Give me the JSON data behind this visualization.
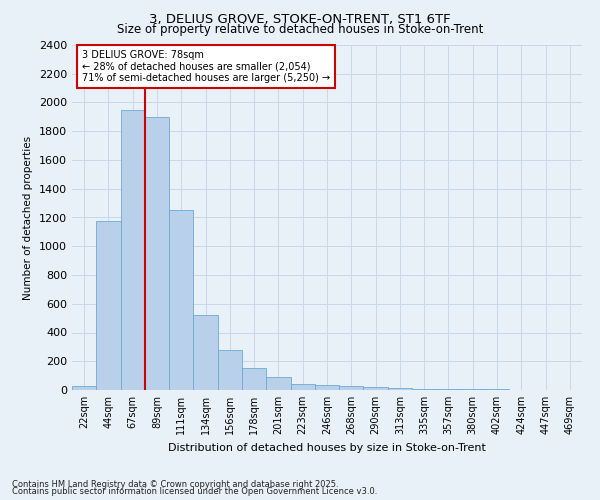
{
  "title1": "3, DELIUS GROVE, STOKE-ON-TRENT, ST1 6TF",
  "title2": "Size of property relative to detached houses in Stoke-on-Trent",
  "xlabel": "Distribution of detached houses by size in Stoke-on-Trent",
  "ylabel": "Number of detached properties",
  "bin_labels": [
    "22sqm",
    "44sqm",
    "67sqm",
    "89sqm",
    "111sqm",
    "134sqm",
    "156sqm",
    "178sqm",
    "201sqm",
    "223sqm",
    "246sqm",
    "268sqm",
    "290sqm",
    "313sqm",
    "335sqm",
    "357sqm",
    "380sqm",
    "402sqm",
    "424sqm",
    "447sqm",
    "469sqm"
  ],
  "bar_values": [
    25,
    1175,
    1950,
    1900,
    1250,
    520,
    275,
    155,
    90,
    45,
    35,
    30,
    20,
    15,
    10,
    5,
    5,
    5,
    3,
    3,
    2
  ],
  "bar_color": "#b8d0ea",
  "bar_edge_color": "#6aaad4",
  "grid_color": "#c8d8ea",
  "background_color": "#e8f0f8",
  "red_line_color": "#cc0000",
  "annotation_text": "3 DELIUS GROVE: 78sqm\n← 28% of detached houses are smaller (2,054)\n71% of semi-detached houses are larger (5,250) →",
  "annotation_box_color": "#ffffff",
  "annotation_box_edge": "#cc0000",
  "ylim": [
    0,
    2400
  ],
  "yticks": [
    0,
    200,
    400,
    600,
    800,
    1000,
    1200,
    1400,
    1600,
    1800,
    2000,
    2200,
    2400
  ],
  "footnote1": "Contains HM Land Registry data © Crown copyright and database right 2025.",
  "footnote2": "Contains public sector information licensed under the Open Government Licence v3.0."
}
